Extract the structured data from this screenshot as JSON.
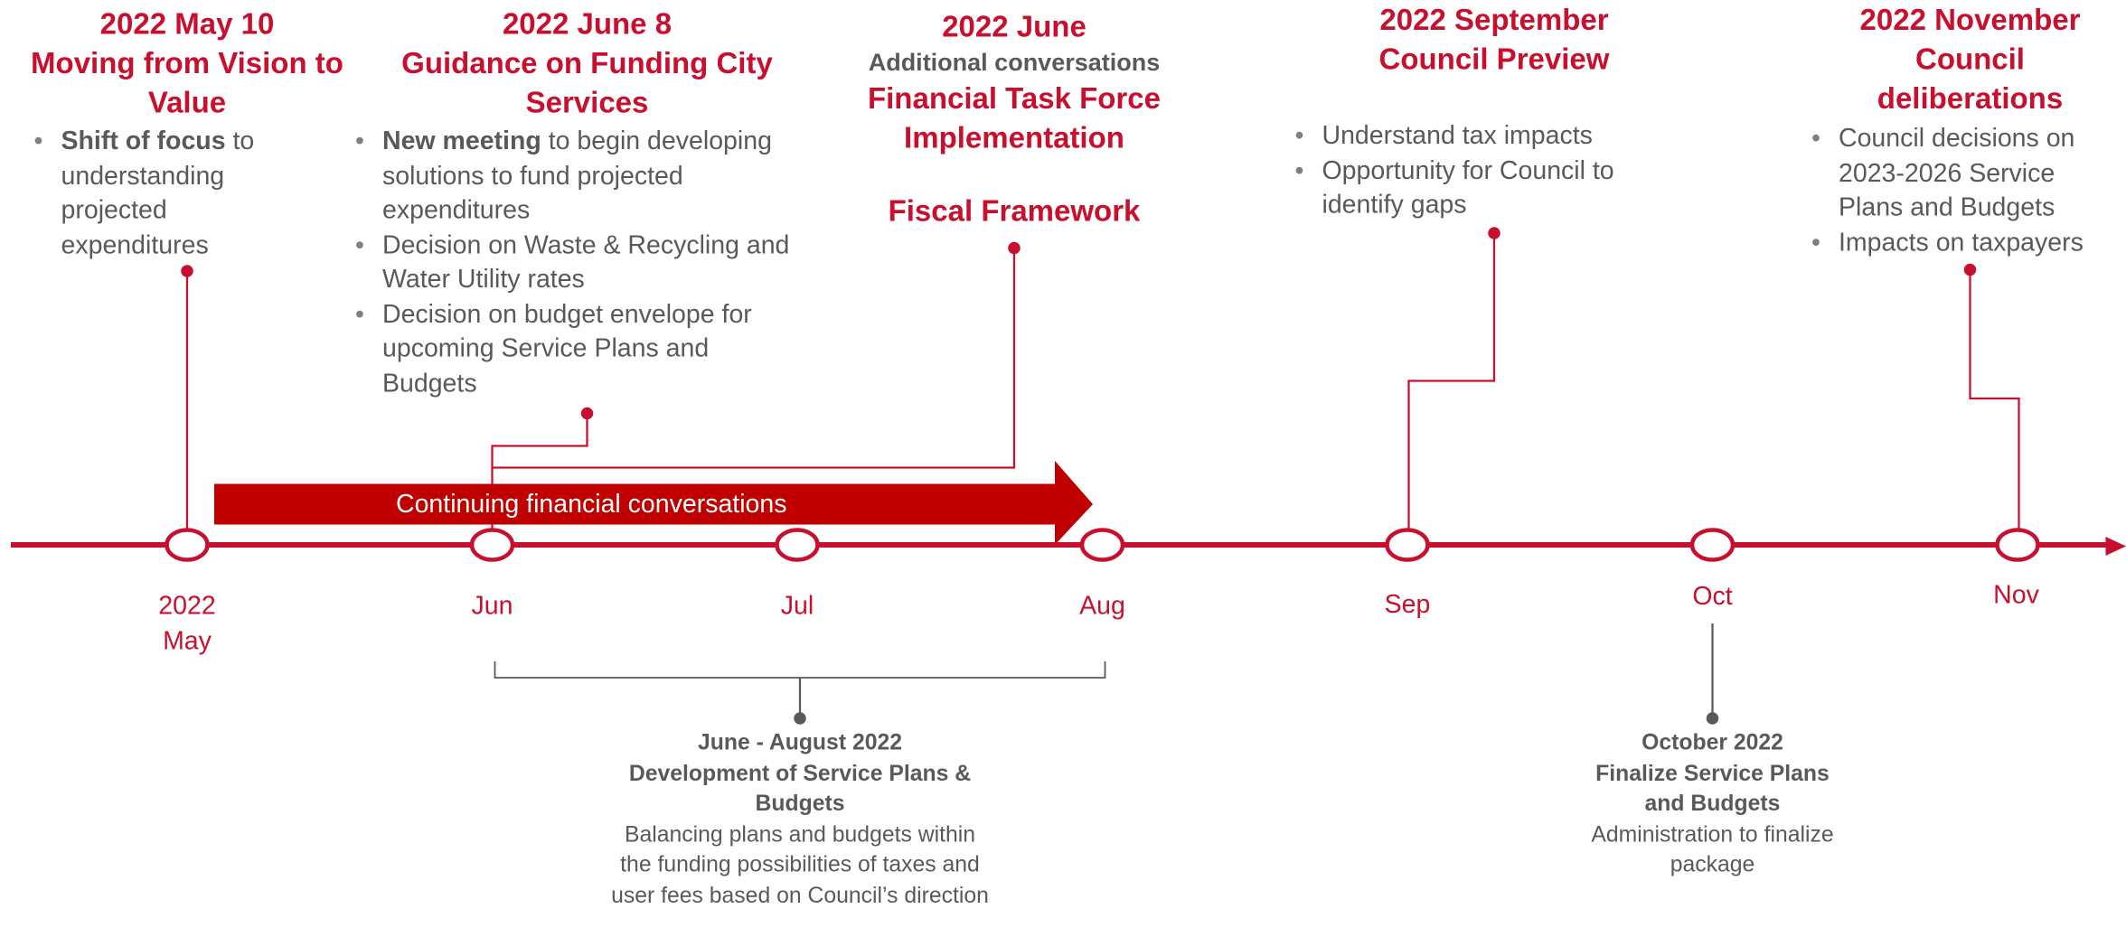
{
  "arrow_label": "Continuing financial conversations",
  "axis_labels": [
    "2022 May",
    "Jun",
    "Jul",
    "Aug",
    "Sep",
    "Oct",
    "Nov"
  ],
  "milestones": [
    {
      "date": "2022 May 10",
      "title": "Moving from Vision to Value",
      "bullets": [
        {
          "bold": "Shift of focus",
          "text": " to understanding projected expenditures"
        }
      ]
    },
    {
      "date": "2022 June 8",
      "title": "Guidance on Funding City Services",
      "bullets": [
        {
          "bold": "New meeting",
          "text": " to begin developing solutions to fund projected expenditures"
        },
        {
          "text": "Decision on Waste & Recycling and Water Utility rates"
        },
        {
          "text": "Decision on budget envelope for upcoming Service Plans and Budgets"
        }
      ]
    },
    {
      "date": "2022 June",
      "subtitle": "Additional conversations",
      "title": "Financial Task Force Implementation",
      "extra": "Fiscal Framework"
    },
    {
      "date": "2022 September",
      "title": "Council Preview",
      "bullets": [
        {
          "text": "Understand tax impacts"
        },
        {
          "text": "Opportunity for Council to identify gaps"
        }
      ]
    },
    {
      "date": "2022 November",
      "title": "Council deliberations",
      "bullets": [
        {
          "text": "Council decisions on 2023-2026 Service Plans and Budgets"
        },
        {
          "text": "Impacts on taxpayers"
        }
      ]
    }
  ],
  "notes": [
    {
      "date": "June - August 2022",
      "title": "Development of Service Plans & Budgets",
      "text": "Balancing plans and budgets within the funding possibilities of taxes and user fees based on Council’s direction"
    },
    {
      "date": "October 2022",
      "title": "Finalize Service Plans and Budgets",
      "text": "Administration to finalize package"
    }
  ]
}
